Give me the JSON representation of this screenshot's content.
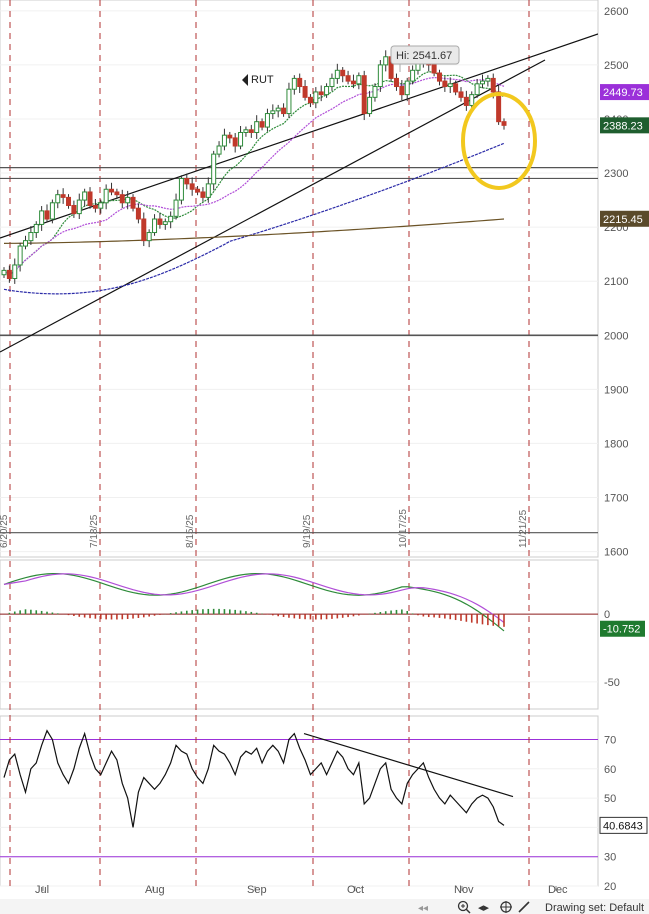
{
  "chart_data": [
    {
      "type": "candlestick",
      "symbol": "RUT",
      "ylim": [
        1590,
        2620
      ],
      "yticks": [
        1600,
        1700,
        1800,
        1900,
        2000,
        2100,
        2200,
        2300,
        2400,
        2500,
        2600
      ],
      "hi_annotation": "Hi: 2541.67",
      "price_badges": [
        {
          "value": "2449.73",
          "color": "#9b30d9"
        },
        {
          "value": "2388.23",
          "color": "#1f5e2f"
        },
        {
          "value": "2215.45",
          "color": "#5a4a2a"
        }
      ],
      "horizontal_levels": [
        2000,
        2290,
        2310,
        1635
      ],
      "vertical_date_labels": [
        "6/20/25",
        "7/18/25",
        "8/15/25",
        "9/19/25",
        "10/17/25",
        "11/21/25"
      ],
      "month_labels": [
        "Jul",
        "Aug",
        "Sep",
        "Oct",
        "Nov",
        "Dec"
      ],
      "closes": [
        2120,
        2105,
        2130,
        2165,
        2175,
        2190,
        2205,
        2230,
        2215,
        2245,
        2260,
        2255,
        2240,
        2225,
        2250,
        2265,
        2240,
        2235,
        2245,
        2270,
        2265,
        2260,
        2245,
        2255,
        2235,
        2215,
        2175,
        2190,
        2215,
        2205,
        2210,
        2220,
        2250,
        2290,
        2280,
        2270,
        2265,
        2255,
        2280,
        2335,
        2350,
        2370,
        2365,
        2350,
        2375,
        2380,
        2375,
        2395,
        2385,
        2410,
        2415,
        2420,
        2410,
        2455,
        2475,
        2460,
        2440,
        2430,
        2450,
        2445,
        2460,
        2475,
        2490,
        2480,
        2470,
        2465,
        2480,
        2410,
        2440,
        2460,
        2500,
        2515,
        2475,
        2460,
        2445,
        2470,
        2490,
        2505,
        2515,
        2500,
        2485,
        2470,
        2460,
        2465,
        2450,
        2440,
        2425,
        2445,
        2465,
        2470,
        2475,
        2450,
        2395,
        2388.23
      ],
      "ma_green_last": 2449.73,
      "ma_200_last": 2215.45,
      "macd": {
        "ylim": [
          -70,
          40
        ],
        "yticks": [
          0,
          -50
        ],
        "last": "-10.752"
      },
      "rsi": {
        "ylim": [
          20,
          78
        ],
        "yticks": [
          70,
          60,
          50,
          40,
          30,
          20
        ],
        "levels": [
          70,
          30
        ],
        "last": "40.6843",
        "values": [
          57,
          63,
          65,
          58,
          52,
          60,
          62,
          68,
          73,
          70,
          62,
          58,
          55,
          60,
          67,
          72,
          65,
          60,
          58,
          62,
          66,
          63,
          55,
          50,
          40,
          52,
          57,
          55,
          53,
          55,
          58,
          62,
          68,
          66,
          65,
          60,
          57,
          55,
          60,
          68,
          66,
          65,
          62,
          58,
          64,
          66,
          65,
          67,
          62,
          66,
          68,
          66,
          62,
          70,
          72,
          67,
          63,
          58,
          60,
          62,
          58,
          62,
          66,
          64,
          60,
          58,
          62,
          48,
          50,
          55,
          60,
          62,
          53,
          50,
          48,
          55,
          58,
          60,
          62,
          57,
          53,
          50,
          48,
          51,
          49,
          47,
          45,
          48,
          50,
          51,
          50,
          47,
          42,
          40.68
        ]
      }
    }
  ],
  "toolbar": {
    "drawing_set_label": "Drawing set: Default"
  }
}
